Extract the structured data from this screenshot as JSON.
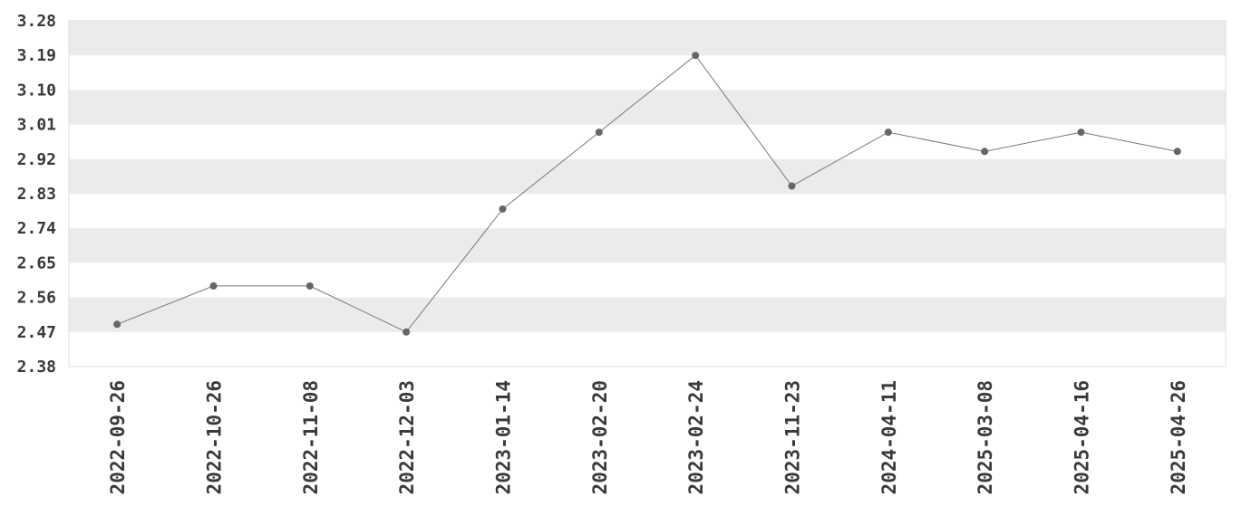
{
  "chart_data": {
    "type": "line",
    "title": "",
    "xlabel": "",
    "ylabel": "",
    "x": [
      "2022-09-26",
      "2022-10-26",
      "2022-11-08",
      "2022-12-03",
      "2023-01-14",
      "2023-02-20",
      "2023-02-24",
      "2023-11-23",
      "2024-04-11",
      "2025-03-08",
      "2025-04-16",
      "2025-04-26"
    ],
    "series": [
      {
        "values": [
          2.49,
          2.59,
          2.59,
          2.47,
          2.79,
          2.99,
          3.19,
          2.85,
          2.99,
          2.94,
          2.99,
          2.94
        ]
      }
    ],
    "ylim": [
      2.38,
      3.28
    ],
    "yticks": [
      "2.38",
      "2.47",
      "2.56",
      "2.65",
      "2.74",
      "2.83",
      "2.92",
      "3.01",
      "3.10",
      "3.19",
      "3.28"
    ],
    "grid": "alternating horizontal bands",
    "colors": {
      "line": "#777777",
      "marker": "#666666",
      "band": "#ebebeb",
      "tick_text": "#3a3a3a"
    }
  }
}
